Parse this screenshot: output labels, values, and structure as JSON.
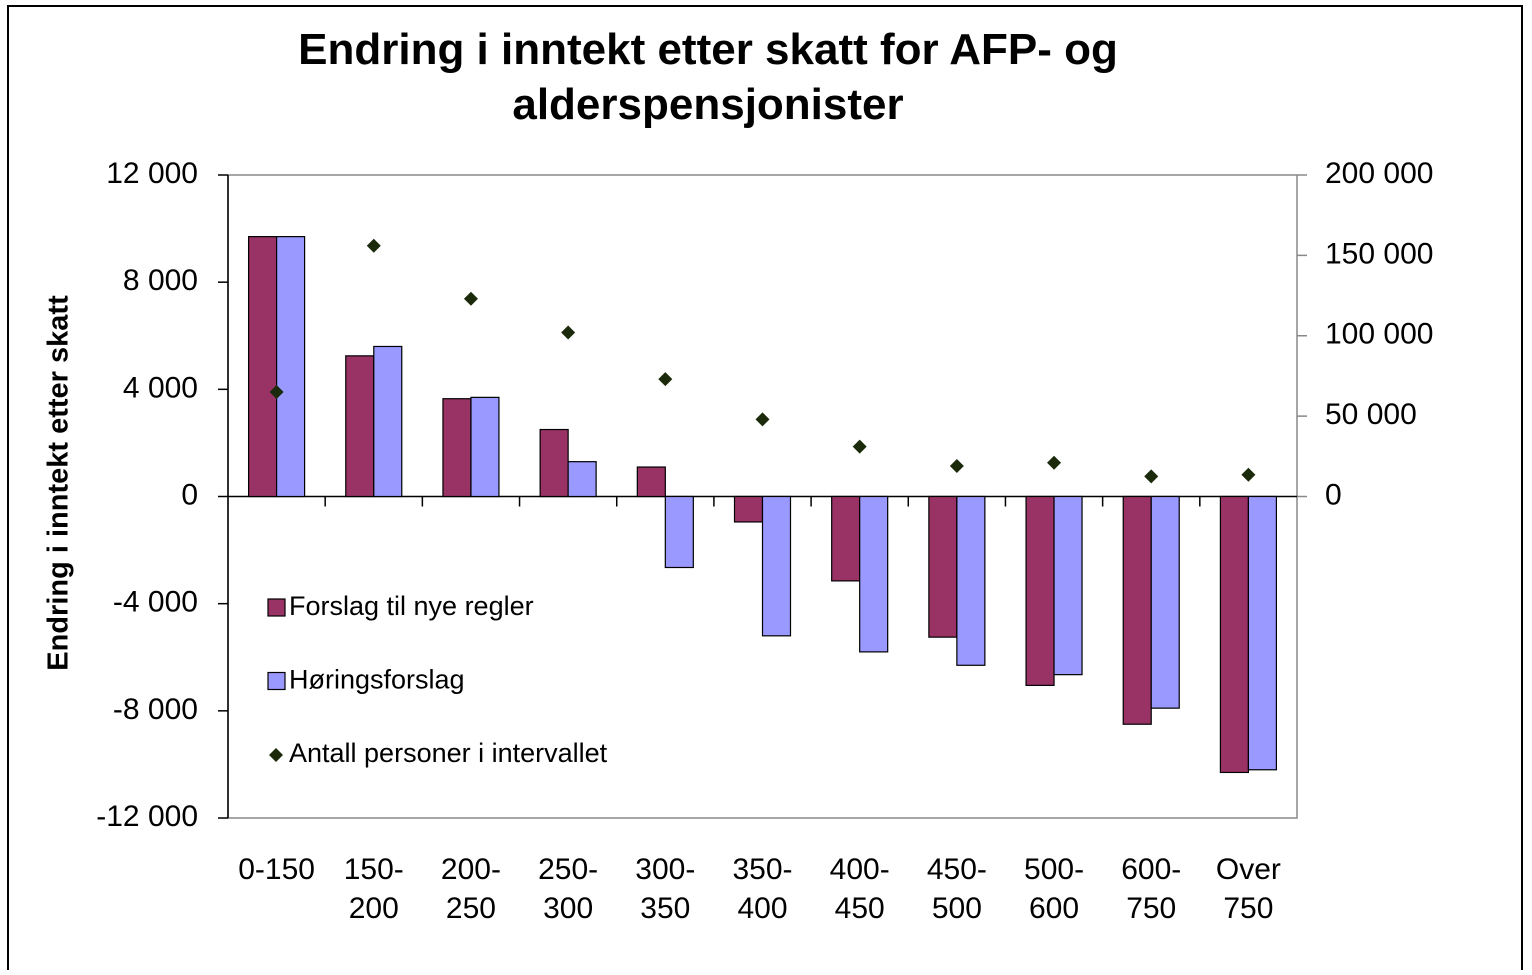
{
  "chart_data": {
    "type": "bar",
    "title": "Endring i inntekt etter skatt for AFP- og alderspensjonister",
    "y_label": "Endring i inntekt etter skatt",
    "categories": [
      "0-150",
      "150-\n200",
      "200-\n250",
      "250-\n300",
      "300-\n350",
      "350-\n400",
      "400-\n450",
      "450-\n500",
      "500-\n600",
      "600-\n750",
      "Over\n750"
    ],
    "series": [
      {
        "name": "Forslag til nye regler",
        "color": "#993366",
        "type": "bar",
        "values": [
          9700,
          5250,
          3650,
          2500,
          1100,
          -950,
          -3150,
          -5250,
          -7050,
          -8500,
          -10300
        ]
      },
      {
        "name": "Høringsforslag",
        "color": "#9999ff",
        "type": "bar",
        "values": [
          9700,
          5600,
          3700,
          1300,
          -2650,
          -5200,
          -5800,
          -6300,
          -6650,
          -7900,
          -10200
        ]
      },
      {
        "name": "Antall personer i intervallet",
        "color": "#1a2a0a",
        "type": "scatter",
        "axis": "y2",
        "values": [
          65000,
          156000,
          123000,
          102000,
          73000,
          48000,
          31000,
          19000,
          21000,
          12500,
          13500
        ]
      }
    ],
    "ylim": [
      -12000,
      12000
    ],
    "yticks": [
      {
        "value": -12000,
        "label": "-12 000"
      },
      {
        "value": -8000,
        "label": "-8 000"
      },
      {
        "value": -4000,
        "label": "-4 000"
      },
      0,
      {
        "value": 4000,
        "label": "4 000"
      },
      {
        "value": 8000,
        "label": "8 000"
      },
      {
        "value": 12000,
        "label": "12 000"
      }
    ],
    "y2lim": [
      -200000,
      200000
    ],
    "y2ticks": [
      0,
      {
        "value": 50000,
        "label": "50 000"
      },
      {
        "value": 100000,
        "label": "100 000"
      },
      {
        "value": 150000,
        "label": "150 000"
      },
      {
        "value": 200000,
        "label": "200 000"
      }
    ],
    "legend": "inside-left"
  }
}
